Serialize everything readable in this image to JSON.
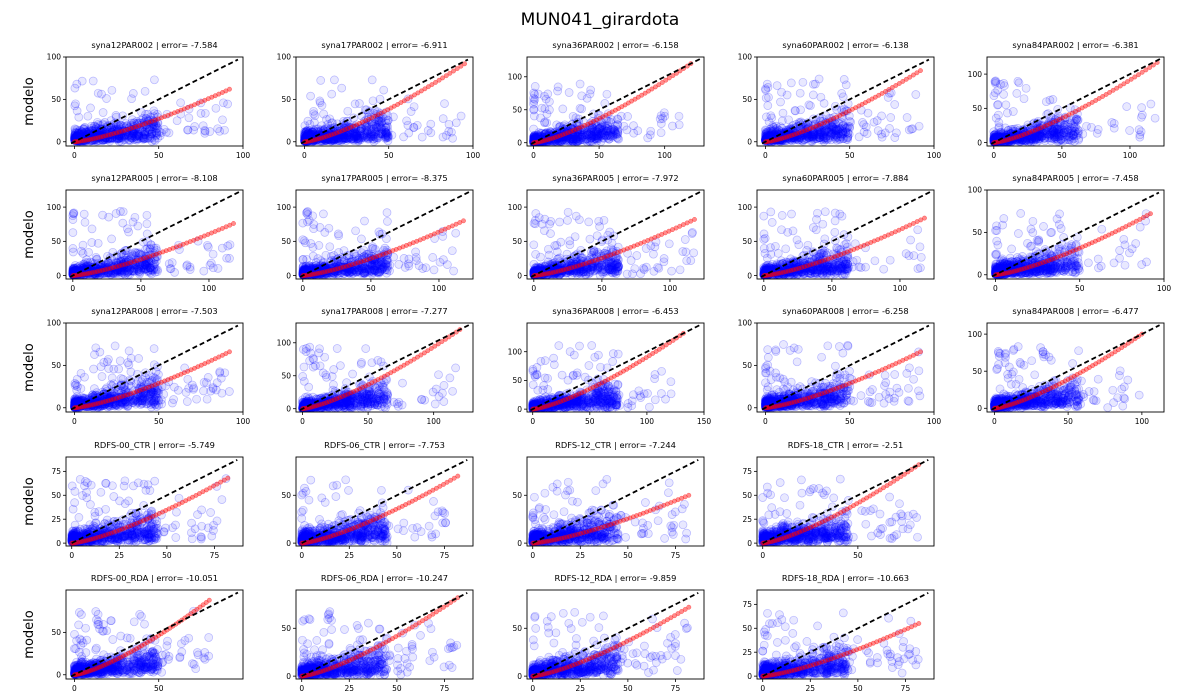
{
  "figure": {
    "title": "MUN041_girardota",
    "ylabel": "modelo"
  },
  "chart_data": [
    {
      "type": "scatter",
      "title": "syna12PAR002 | error= -7.584",
      "xlim": [
        -5,
        100
      ],
      "ylim": [
        -5,
        100
      ],
      "xticks": [
        0,
        50,
        100
      ],
      "yticks": [
        0,
        50,
        100
      ],
      "row": 0,
      "col": 0,
      "ymax_obs": 92,
      "yfit_end": 62
    },
    {
      "type": "scatter",
      "title": "syna17PAR002 | error= -6.911",
      "xlim": [
        -5,
        100
      ],
      "ylim": [
        -5,
        100
      ],
      "xticks": [
        0,
        50,
        100
      ],
      "yticks": [
        0,
        50,
        100
      ],
      "row": 0,
      "col": 1,
      "ymax_obs": 95,
      "yfit_end": 92
    },
    {
      "type": "scatter",
      "title": "syna36PAR002 | error= -6.158",
      "xlim": [
        -5,
        130
      ],
      "ylim": [
        -5,
        130
      ],
      "xticks": [
        0,
        50,
        100
      ],
      "yticks": [
        0,
        50,
        100
      ],
      "row": 0,
      "col": 2,
      "ymax_obs": 120,
      "yfit_end": 120
    },
    {
      "type": "scatter",
      "title": "syna60PAR002 | error= -6.138",
      "xlim": [
        -5,
        100
      ],
      "ylim": [
        -5,
        100
      ],
      "xticks": [
        0,
        50,
        100
      ],
      "yticks": [
        0,
        50,
        100
      ],
      "row": 0,
      "col": 3,
      "ymax_obs": 92,
      "yfit_end": 84
    },
    {
      "type": "scatter",
      "title": "syna84PAR002 | error= -6.381",
      "xlim": [
        -5,
        125
      ],
      "ylim": [
        -5,
        125
      ],
      "xticks": [
        0,
        50,
        100
      ],
      "yticks": [
        0,
        50,
        100
      ],
      "row": 0,
      "col": 4,
      "ymax_obs": 120,
      "yfit_end": 117
    },
    {
      "type": "scatter",
      "title": "syna12PAR005 | error= -8.108",
      "xlim": [
        -5,
        125
      ],
      "ylim": [
        -5,
        125
      ],
      "xticks": [
        0,
        50,
        100
      ],
      "yticks": [
        0,
        50,
        100
      ],
      "row": 1,
      "col": 0,
      "ymax_obs": 118,
      "yfit_end": 76
    },
    {
      "type": "scatter",
      "title": "syna17PAR005 | error= -8.375",
      "xlim": [
        -5,
        125
      ],
      "ylim": [
        -5,
        125
      ],
      "xticks": [
        0,
        50,
        100
      ],
      "yticks": [
        0,
        50,
        100
      ],
      "row": 1,
      "col": 1,
      "ymax_obs": 118,
      "yfit_end": 80
    },
    {
      "type": "scatter",
      "title": "syna36PAR005 | error= -7.972",
      "xlim": [
        -5,
        125
      ],
      "ylim": [
        -5,
        125
      ],
      "xticks": [
        0,
        50,
        100
      ],
      "yticks": [
        0,
        50,
        100
      ],
      "row": 1,
      "col": 2,
      "ymax_obs": 118,
      "yfit_end": 82
    },
    {
      "type": "scatter",
      "title": "syna60PAR005 | error= -7.884",
      "xlim": [
        -5,
        125
      ],
      "ylim": [
        -5,
        125
      ],
      "xticks": [
        0,
        50,
        100
      ],
      "yticks": [
        0,
        50,
        100
      ],
      "row": 1,
      "col": 3,
      "ymax_obs": 118,
      "yfit_end": 84
    },
    {
      "type": "scatter",
      "title": "syna84PAR005 | error= -7.458",
      "xlim": [
        -5,
        100
      ],
      "ylim": [
        -5,
        100
      ],
      "xticks": [
        0,
        50,
        100
      ],
      "yticks": [
        0,
        50,
        100
      ],
      "row": 1,
      "col": 4,
      "ymax_obs": 92,
      "yfit_end": 72
    },
    {
      "type": "scatter",
      "title": "syna12PAR008 | error= -7.503",
      "xlim": [
        -5,
        100
      ],
      "ylim": [
        -5,
        100
      ],
      "xticks": [
        0,
        50,
        100
      ],
      "yticks": [
        0,
        50,
        100
      ],
      "row": 2,
      "col": 0,
      "ymax_obs": 92,
      "yfit_end": 66
    },
    {
      "type": "scatter",
      "title": "syna17PAR008 | error= -7.277",
      "xlim": [
        -5,
        130
      ],
      "ylim": [
        -5,
        130
      ],
      "xticks": [
        0,
        50,
        100
      ],
      "yticks": [
        0,
        50,
        100
      ],
      "row": 2,
      "col": 1,
      "ymax_obs": 120,
      "yfit_end": 120
    },
    {
      "type": "scatter",
      "title": "syna36PAR008 | error= -6.453",
      "xlim": [
        -5,
        150
      ],
      "ylim": [
        -5,
        150
      ],
      "xticks": [
        0,
        50,
        100,
        150
      ],
      "yticks": [
        0,
        50,
        100
      ],
      "row": 2,
      "col": 2,
      "ymax_obs": 132,
      "yfit_end": 132
    },
    {
      "type": "scatter",
      "title": "syna60PAR008 | error= -6.258",
      "xlim": [
        -5,
        100
      ],
      "ylim": [
        -5,
        100
      ],
      "xticks": [
        0,
        50,
        100
      ],
      "yticks": [
        0,
        50,
        100
      ],
      "row": 2,
      "col": 3,
      "ymax_obs": 92,
      "yfit_end": 66
    },
    {
      "type": "scatter",
      "title": "syna84PAR008 | error= -6.477",
      "xlim": [
        -5,
        115
      ],
      "ylim": [
        -5,
        115
      ],
      "xticks": [
        0,
        50,
        100
      ],
      "yticks": [
        0,
        50,
        100
      ],
      "row": 2,
      "col": 4,
      "ymax_obs": 100,
      "yfit_end": 100
    },
    {
      "type": "scatter",
      "title": "RDFS-00_CTR | error= -5.749",
      "xlim": [
        -3,
        90
      ],
      "ylim": [
        -3,
        90
      ],
      "xticks": [
        0,
        25,
        50,
        75
      ],
      "yticks": [
        0,
        25,
        50,
        75
      ],
      "row": 3,
      "col": 0,
      "ymax_obs": 82,
      "yfit_end": 68
    },
    {
      "type": "scatter",
      "title": "RDFS-06_CTR | error= -7.753",
      "xlim": [
        -3,
        90
      ],
      "ylim": [
        -3,
        90
      ],
      "xticks": [
        0,
        25,
        50,
        75
      ],
      "yticks": [
        0,
        50
      ],
      "row": 3,
      "col": 1,
      "ymax_obs": 82,
      "yfit_end": 70
    },
    {
      "type": "scatter",
      "title": "RDFS-12_CTR | error= -7.244",
      "xlim": [
        -3,
        90
      ],
      "ylim": [
        -3,
        90
      ],
      "xticks": [
        0,
        25,
        50,
        75
      ],
      "yticks": [
        0,
        50
      ],
      "row": 3,
      "col": 2,
      "ymax_obs": 82,
      "yfit_end": 50
    },
    {
      "type": "scatter",
      "title": "RDFS-18_CTR | error= -2.51",
      "xlim": [
        -3,
        90
      ],
      "ylim": [
        -3,
        90
      ],
      "xticks": [
        0,
        50
      ],
      "yticks": [
        0,
        25,
        50,
        75
      ],
      "row": 3,
      "col": 3,
      "ymax_obs": 82,
      "yfit_end": 82
    },
    {
      "type": "scatter",
      "title": "RDFS-00_RDA | error= -10.051",
      "xlim": [
        -5,
        100
      ],
      "ylim": [
        -5,
        100
      ],
      "xticks": [
        0,
        50
      ],
      "yticks": [
        0,
        50
      ],
      "row": 4,
      "col": 0,
      "ymax_obs": 80,
      "yfit_end": 88
    },
    {
      "type": "scatter",
      "title": "RDFS-06_RDA | error= -10.247",
      "xlim": [
        -3,
        90
      ],
      "ylim": [
        -3,
        90
      ],
      "xticks": [
        0,
        25,
        50,
        75
      ],
      "yticks": [
        0,
        50
      ],
      "row": 4,
      "col": 1,
      "ymax_obs": 82,
      "yfit_end": 82
    },
    {
      "type": "scatter",
      "title": "RDFS-12_RDA | error= -9.859",
      "xlim": [
        -3,
        90
      ],
      "ylim": [
        -3,
        90
      ],
      "xticks": [
        0,
        25,
        50,
        75
      ],
      "yticks": [
        0,
        50
      ],
      "row": 4,
      "col": 2,
      "ymax_obs": 82,
      "yfit_end": 72
    },
    {
      "type": "scatter",
      "title": "RDFS-18_RDA | error= -10.663",
      "xlim": [
        -3,
        90
      ],
      "ylim": [
        -3,
        90
      ],
      "xticks": [
        0,
        25,
        50,
        75
      ],
      "yticks": [
        0,
        25,
        50,
        75
      ],
      "row": 4,
      "col": 3,
      "ymax_obs": 82,
      "yfit_end": 55
    }
  ],
  "colors": {
    "points": "#0000ff",
    "fit": "#ff0000",
    "identity": "#000000"
  }
}
